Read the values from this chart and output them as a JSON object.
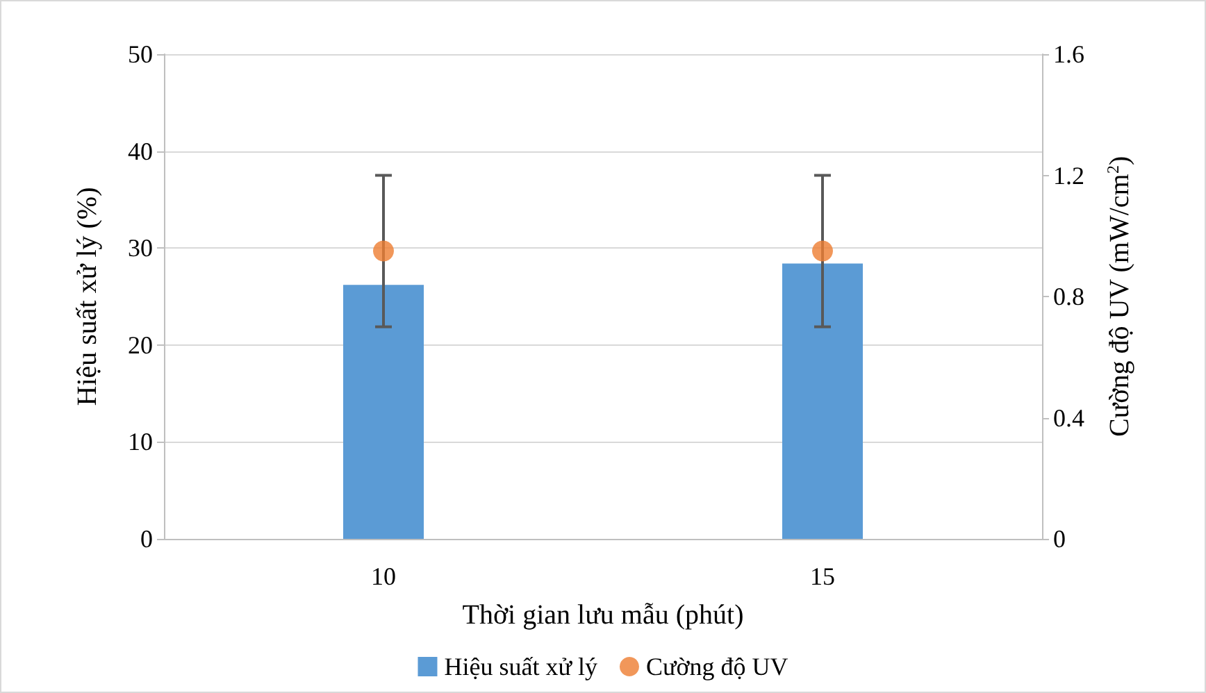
{
  "chart_data": {
    "type": "bar",
    "xlabel": "Thời gian lưu mẫu (phút)",
    "ylabel": "Hiệu suất xử lý (%)",
    "y2label": "Cường độ UV (mW/cm$^{2}$)",
    "categories": [
      "10",
      "15"
    ],
    "series": [
      {
        "name": "Hiệu suất xử lý",
        "color": "#5b9bd5",
        "values": [
          26.2,
          28.4
        ]
      },
      {
        "name": "Cường độ UV",
        "type": "scatter",
        "axis": "y2",
        "color": "#ed7d31",
        "marker": "circle",
        "values": [
          0.95,
          0.95
        ],
        "errors": [
          [
            0.7,
            1.2
          ],
          [
            0.7,
            1.2
          ]
        ]
      }
    ],
    "ylim": [
      0,
      50
    ],
    "yticks": [
      0,
      10,
      20,
      30,
      40,
      50
    ],
    "y2lim": [
      0,
      1.6
    ],
    "y2ticks": [
      0,
      0.4,
      0.8,
      1.2,
      1.6
    ],
    "grid": "y",
    "legend": "bottom"
  }
}
